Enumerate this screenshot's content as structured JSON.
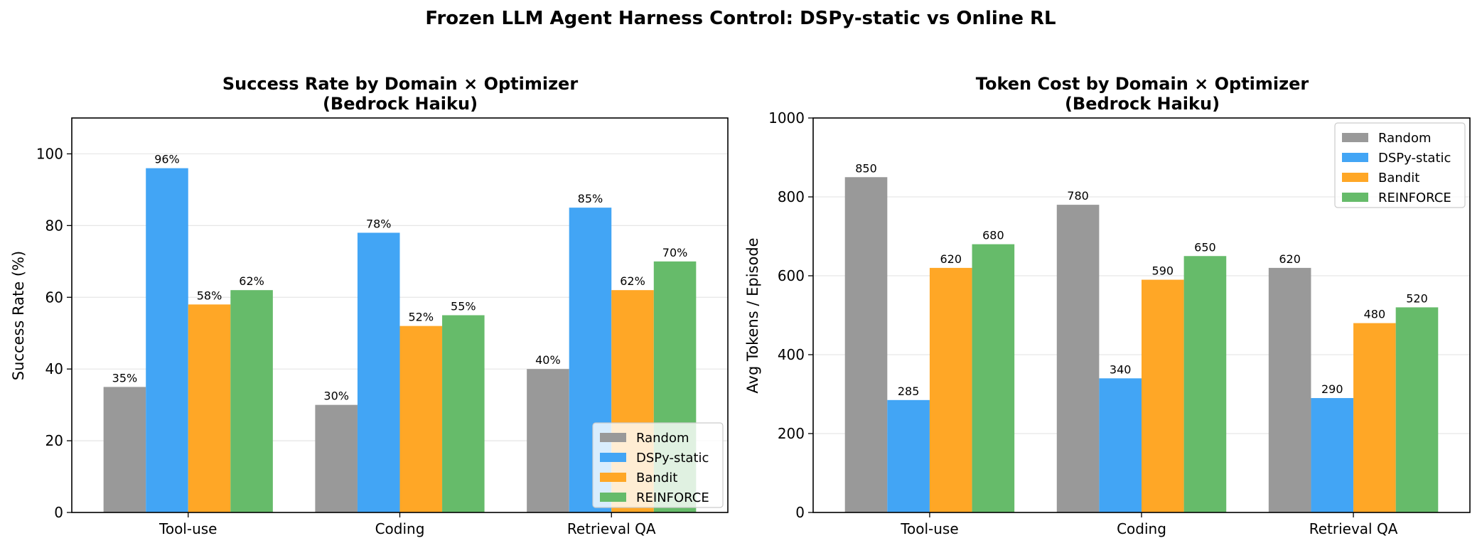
{
  "figure": {
    "suptitle": "Frozen LLM Agent Harness Control: DSPy-static vs Online RL"
  },
  "colors": {
    "Random": "#999999",
    "DSPy-static": "#42a5f5",
    "Bandit": "#ffa726",
    "REINFORCE": "#66bb6a"
  },
  "chart_data": [
    {
      "type": "bar",
      "title_line1": "Success Rate by Domain × Optimizer",
      "title_line2": "(Bedrock Haiku)",
      "xlabel": "",
      "ylabel": "Success Rate (%)",
      "categories": [
        "Tool-use",
        "Coding",
        "Retrieval QA"
      ],
      "ylim": [
        0,
        110
      ],
      "yticks": [
        "0",
        "20",
        "40",
        "60",
        "80",
        "100"
      ],
      "grid": "horizontal",
      "legend_position": "lower-right",
      "value_suffix": "%",
      "series": [
        {
          "name": "Random",
          "values": [
            35,
            30,
            40
          ]
        },
        {
          "name": "DSPy-static",
          "values": [
            96,
            78,
            85
          ]
        },
        {
          "name": "Bandit",
          "values": [
            58,
            52,
            62
          ]
        },
        {
          "name": "REINFORCE",
          "values": [
            62,
            55,
            70
          ]
        }
      ]
    },
    {
      "type": "bar",
      "title_line1": "Token Cost by Domain × Optimizer",
      "title_line2": "(Bedrock Haiku)",
      "xlabel": "",
      "ylabel": "Avg Tokens / Episode",
      "categories": [
        "Tool-use",
        "Coding",
        "Retrieval QA"
      ],
      "ylim": [
        0,
        1000
      ],
      "yticks": [
        "0",
        "200",
        "400",
        "600",
        "800",
        "1000"
      ],
      "grid": "horizontal",
      "legend_position": "upper-right",
      "value_suffix": "",
      "series": [
        {
          "name": "Random",
          "values": [
            850,
            780,
            620
          ]
        },
        {
          "name": "DSPy-static",
          "values": [
            285,
            340,
            290
          ]
        },
        {
          "name": "Bandit",
          "values": [
            620,
            590,
            480
          ]
        },
        {
          "name": "REINFORCE",
          "values": [
            680,
            650,
            520
          ]
        }
      ]
    }
  ]
}
